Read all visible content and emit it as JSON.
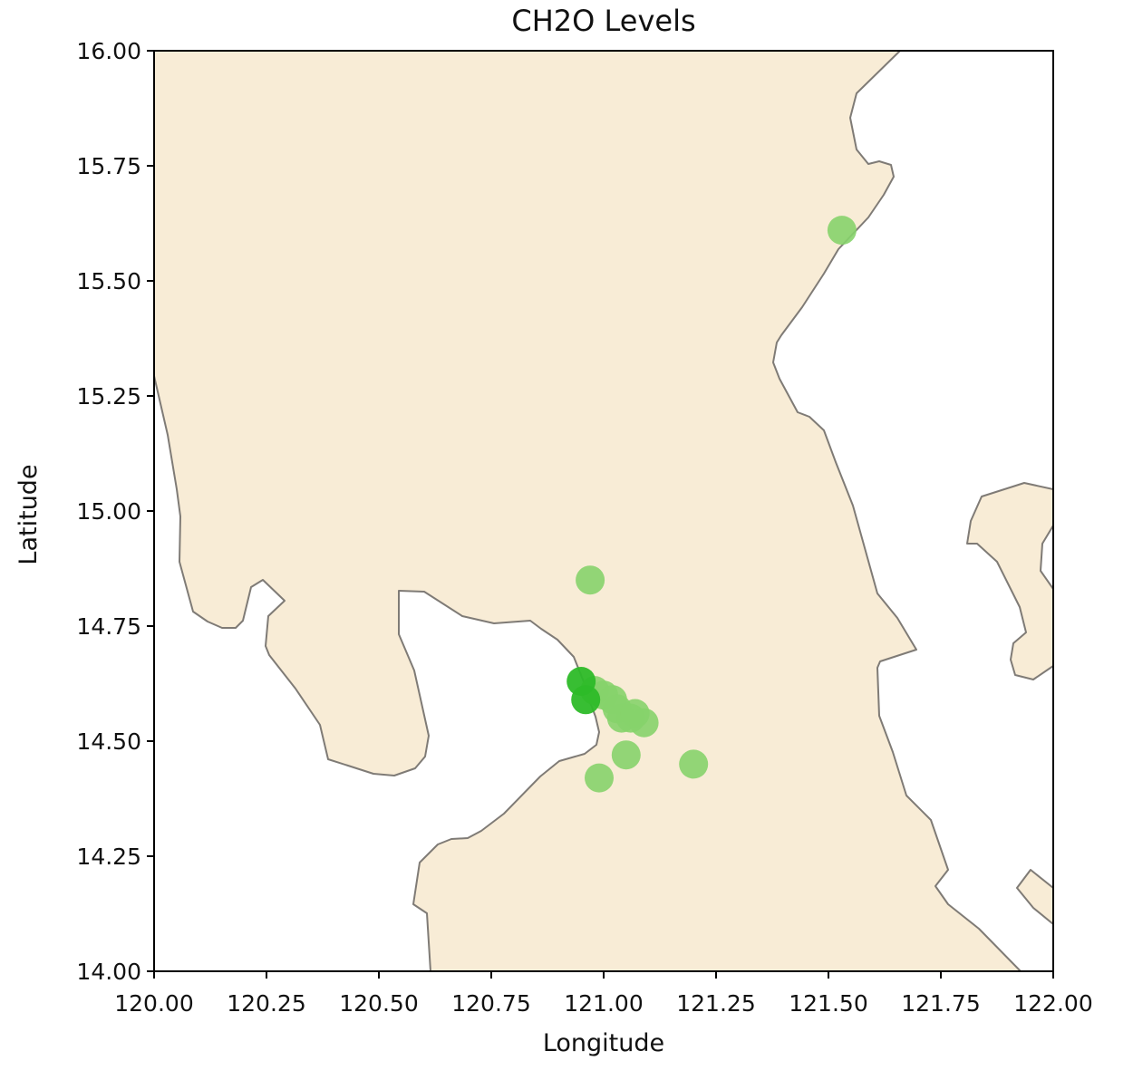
{
  "chart_data": {
    "type": "scatter",
    "title": "CH2O Levels",
    "xlabel": "Longitude",
    "ylabel": "Latitude",
    "xlim": [
      120.0,
      122.0
    ],
    "ylim": [
      14.0,
      16.0
    ],
    "xticks": [
      "120.00",
      "120.25",
      "120.50",
      "120.75",
      "121.00",
      "121.25",
      "121.50",
      "121.75",
      "122.00"
    ],
    "yticks": [
      "14.00",
      "14.25",
      "14.50",
      "14.75",
      "15.00",
      "15.25",
      "15.50",
      "15.75",
      "16.00"
    ],
    "grid": false,
    "colors": {
      "land": "#f8ecd6",
      "coastline": "#7f7b76",
      "point_light": "#86d36b",
      "point_dark": "#2dbb28"
    },
    "points": [
      {
        "lon": 121.53,
        "lat": 15.61,
        "level": "light"
      },
      {
        "lon": 120.97,
        "lat": 14.85,
        "level": "light"
      },
      {
        "lon": 120.95,
        "lat": 14.63,
        "level": "dark"
      },
      {
        "lon": 120.96,
        "lat": 14.59,
        "level": "dark"
      },
      {
        "lon": 120.98,
        "lat": 14.61,
        "level": "light"
      },
      {
        "lon": 121.0,
        "lat": 14.6,
        "level": "light"
      },
      {
        "lon": 121.02,
        "lat": 14.59,
        "level": "light"
      },
      {
        "lon": 121.03,
        "lat": 14.57,
        "level": "light"
      },
      {
        "lon": 121.04,
        "lat": 14.55,
        "level": "light"
      },
      {
        "lon": 121.06,
        "lat": 14.55,
        "level": "light"
      },
      {
        "lon": 121.07,
        "lat": 14.56,
        "level": "light"
      },
      {
        "lon": 121.09,
        "lat": 14.54,
        "level": "light"
      },
      {
        "lon": 121.05,
        "lat": 14.47,
        "level": "light"
      },
      {
        "lon": 120.99,
        "lat": 14.42,
        "level": "light"
      },
      {
        "lon": 121.2,
        "lat": 14.45,
        "level": "light"
      }
    ]
  }
}
